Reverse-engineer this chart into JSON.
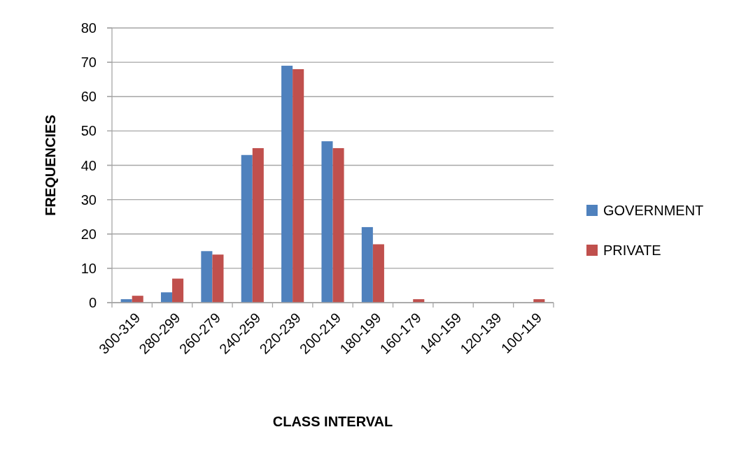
{
  "chart_data": {
    "type": "bar",
    "xlabel": "CLASS INTERVAL",
    "ylabel": "FREQUENCIES",
    "categories": [
      "300-319",
      "280-299",
      "260-279",
      "240-259",
      "220-239",
      "200-219",
      "180-199",
      "160-179",
      "140-159",
      "120-139",
      "100-119"
    ],
    "series": [
      {
        "name": "GOVERNMENT",
        "color": "#4f81bd",
        "values": [
          1,
          3,
          15,
          43,
          69,
          47,
          22,
          0,
          0,
          0,
          0
        ]
      },
      {
        "name": "PRIVATE",
        "color": "#c0504d",
        "values": [
          2,
          7,
          14,
          45,
          68,
          45,
          17,
          1,
          0,
          0,
          1
        ]
      }
    ],
    "ylim": [
      0,
      80
    ],
    "yticks": [
      0,
      10,
      20,
      30,
      40,
      50,
      60,
      70,
      80
    ],
    "grid": "y",
    "legend": "right"
  }
}
